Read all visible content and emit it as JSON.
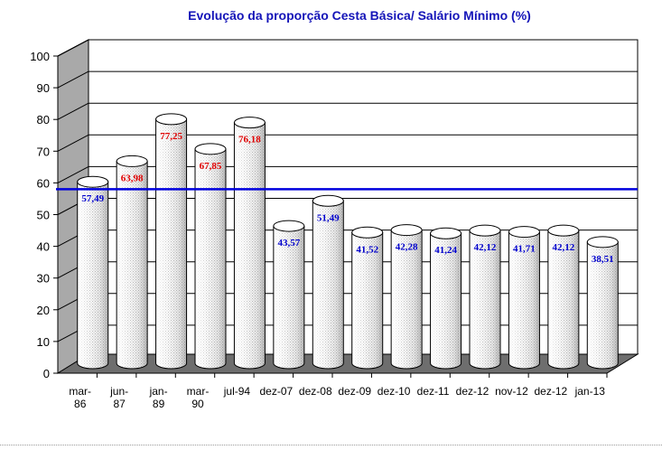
{
  "chart_data": {
    "type": "bar",
    "title": "Evolução da proporção Cesta Básica/ Salário Mínimo (%)",
    "categories": [
      [
        "mar-",
        "86"
      ],
      [
        "jun-",
        "87"
      ],
      [
        "jan-",
        "89"
      ],
      [
        "mar-",
        "90"
      ],
      [
        "jul-94"
      ],
      [
        "dez-07"
      ],
      [
        "dez-08"
      ],
      [
        "dez-09"
      ],
      [
        "dez-10"
      ],
      [
        "dez-11"
      ],
      [
        "dez-12"
      ],
      [
        "nov-12"
      ],
      [
        "dez-12"
      ],
      [
        "jan-13"
      ]
    ],
    "values": [
      57.49,
      63.98,
      77.25,
      67.85,
      76.18,
      43.57,
      51.49,
      41.52,
      42.28,
      41.24,
      42.12,
      41.71,
      42.12,
      38.51
    ],
    "data_labels": [
      "57,49",
      "63,98",
      "77,25",
      "67,85",
      "76,18",
      "43,57",
      "51,49",
      "41,52",
      "42,28",
      "41,24",
      "42,12",
      "41,71",
      "42,12",
      "38,51"
    ],
    "label_colors": [
      "#0000cc",
      "#e00000",
      "#e00000",
      "#e00000",
      "#e00000",
      "#0000cc",
      "#0000cc",
      "#0000cc",
      "#0000cc",
      "#0000cc",
      "#0000cc",
      "#0000cc",
      "#0000cc",
      "#0000cc"
    ],
    "reference_line": 58,
    "reference_color": "#0000dd",
    "ylim": [
      0,
      100
    ],
    "yticks": [
      0,
      10,
      20,
      30,
      40,
      50,
      60,
      70,
      80,
      90,
      100
    ],
    "xlabel": "",
    "ylabel": "",
    "grid": true,
    "bar_shape": "3d-cylinder"
  }
}
